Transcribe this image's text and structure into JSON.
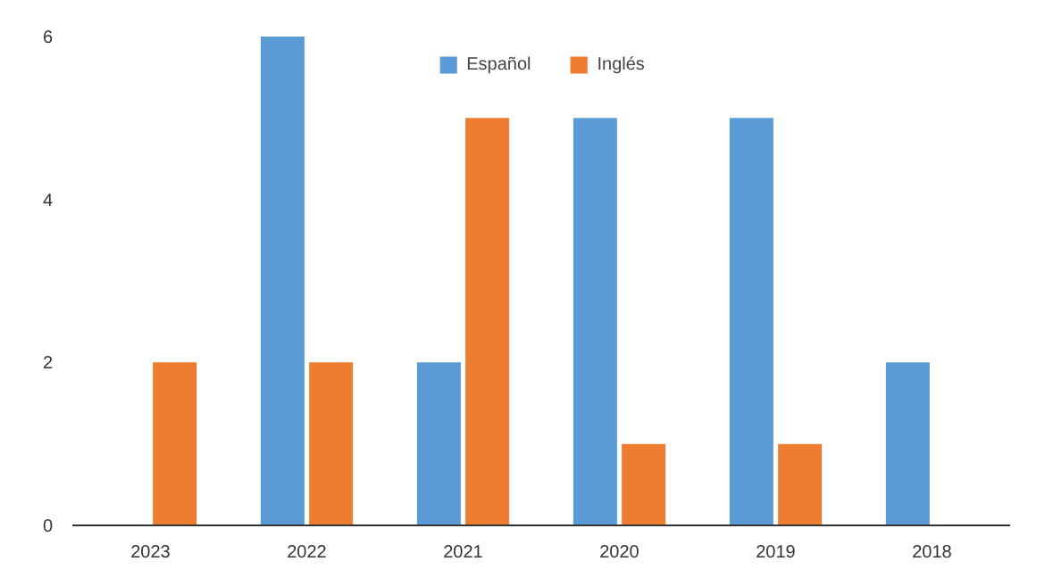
{
  "chart_data": {
    "type": "bar",
    "categories": [
      "2023",
      "2022",
      "2021",
      "2020",
      "2019",
      "2018"
    ],
    "series": [
      {
        "name": "Español",
        "color": "#5b9bd5",
        "values": [
          null,
          6,
          2,
          5,
          5,
          2
        ]
      },
      {
        "name": "Inglés",
        "color": "#ed7d31",
        "values": [
          2,
          2,
          5,
          1,
          1,
          null
        ]
      }
    ],
    "ylim": [
      0,
      6
    ],
    "yticks": [
      0,
      2,
      4,
      6
    ],
    "grid": false,
    "legend": "top"
  }
}
